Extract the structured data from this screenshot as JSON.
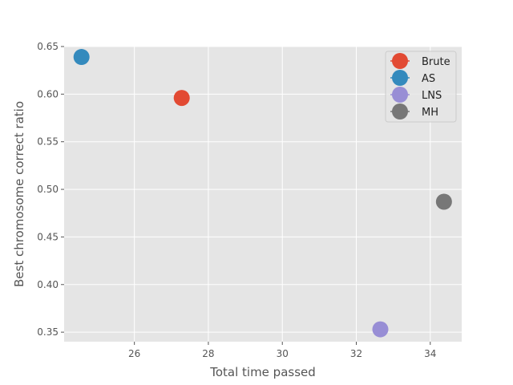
{
  "chart_data": {
    "type": "scatter",
    "title": "",
    "xlabel": "Total time passed",
    "ylabel": "Best chromosome correct ratio",
    "xlim": [
      24.1,
      34.85
    ],
    "ylim": [
      0.34,
      0.65
    ],
    "xticks": [
      26,
      28,
      30,
      32,
      34
    ],
    "xtick_labels": [
      "26",
      "28",
      "30",
      "32",
      "34"
    ],
    "yticks": [
      0.35,
      0.4,
      0.45,
      0.5,
      0.55,
      0.6,
      0.65
    ],
    "ytick_labels": [
      "0.35",
      "0.40",
      "0.45",
      "0.50",
      "0.55",
      "0.60",
      "0.65"
    ],
    "grid": true,
    "legend_position": "top-right",
    "series": [
      {
        "name": "Brute",
        "color": "#E24A33",
        "x": [
          27.28
        ],
        "y": [
          0.596
        ]
      },
      {
        "name": "AS",
        "color": "#348ABD",
        "x": [
          24.57
        ],
        "y": [
          0.639
        ]
      },
      {
        "name": "LNS",
        "color": "#988ED5",
        "x": [
          32.65
        ],
        "y": [
          0.353
        ]
      },
      {
        "name": "MH",
        "color": "#777777",
        "x": [
          34.37
        ],
        "y": [
          0.487
        ]
      }
    ]
  }
}
